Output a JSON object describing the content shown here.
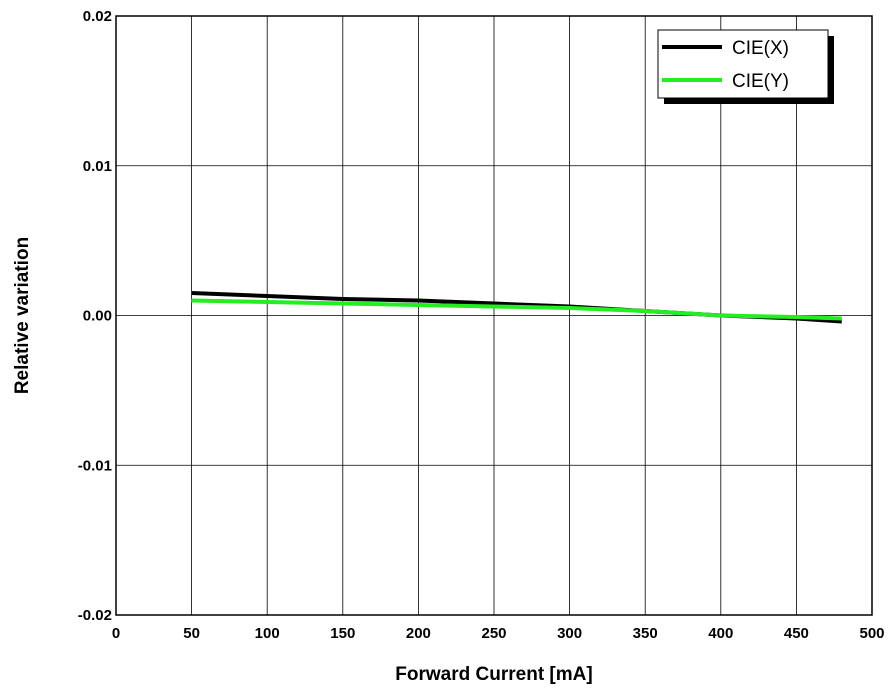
{
  "chart_data": {
    "type": "line",
    "title": "",
    "xlabel": "Forward Current [mA]",
    "ylabel": "Relative variation",
    "xlim": [
      0,
      500
    ],
    "ylim": [
      -0.02,
      0.02
    ],
    "x_ticks": [
      0,
      50,
      100,
      150,
      200,
      250,
      300,
      350,
      400,
      450,
      500
    ],
    "x_tick_labels": [
      "0",
      "50",
      "100",
      "150",
      "200",
      "250",
      "300",
      "350",
      "400",
      "450",
      "500"
    ],
    "y_ticks": [
      -0.02,
      -0.01,
      0.0,
      0.01,
      0.02
    ],
    "y_tick_labels": [
      "-0.02",
      "-0.01",
      "0.00",
      "0.01",
      "0.02"
    ],
    "grid": true,
    "legend_position": "top-right",
    "series": [
      {
        "name": "CIE(X)",
        "color": "#000000",
        "x": [
          50,
          100,
          150,
          200,
          250,
          300,
          350,
          400,
          450,
          480
        ],
        "y": [
          0.0015,
          0.0013,
          0.0011,
          0.001,
          0.0008,
          0.0006,
          0.0003,
          0.0,
          -0.0002,
          -0.0004
        ]
      },
      {
        "name": "CIE(Y)",
        "color": "#22ee22",
        "x": [
          50,
          100,
          150,
          200,
          250,
          300,
          350,
          400,
          450,
          480
        ],
        "y": [
          0.001,
          0.0009,
          0.0008,
          0.0007,
          0.0006,
          0.0005,
          0.0003,
          0.0,
          -0.0001,
          -0.0002
        ]
      }
    ]
  }
}
